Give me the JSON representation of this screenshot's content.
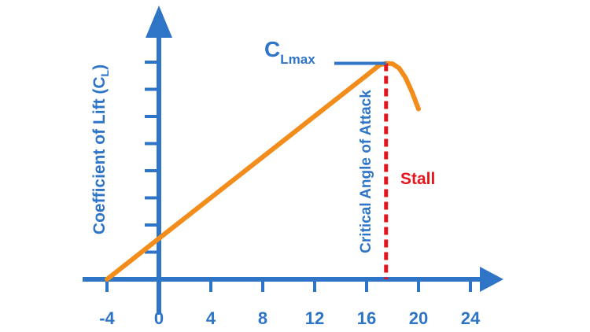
{
  "chart_data": {
    "type": "line",
    "title": "",
    "xlabel": "",
    "ylabel": "Coefficient of Lift (C",
    "ylabel_subscript": "L",
    "ylabel_close": ")",
    "x_ticks": [
      "-4",
      "0",
      "4",
      "8",
      "12",
      "16",
      "20",
      "24"
    ],
    "xlim": [
      -4,
      24
    ],
    "y_tick_count": 8,
    "grid": false,
    "series": [
      {
        "x": [
          -4,
          0,
          4,
          8,
          12,
          16,
          17,
          17.5,
          18,
          18.5,
          19,
          19.5,
          20
        ],
        "y": [
          0,
          1.7,
          3.4,
          5.1,
          6.8,
          8.5,
          8.93,
          9.0,
          8.98,
          8.8,
          8.4,
          7.8,
          7.1
        ]
      }
    ],
    "annotations": {
      "clmax": {
        "main": "C",
        "sub": "Lmax",
        "y": 9.0
      },
      "critical": {
        "label": "Critical Angle of Attack",
        "x": 17.5
      },
      "stall": {
        "label": "Stall"
      }
    },
    "colors": {
      "axis": "#2E75C8",
      "curve": "#F28C1B",
      "stall": "#E8141C"
    }
  }
}
